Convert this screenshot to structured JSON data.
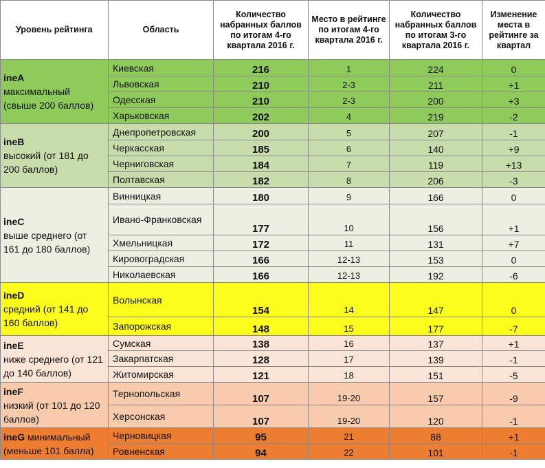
{
  "headers": {
    "level": "Уровень рейтинга",
    "region": "Область",
    "score_q4": "Количество набранных баллов по итогам 4-го квартала 2016 г.",
    "place_q4": "Место в рейтинге по итогам 4-го квартала 2016 г.",
    "score_q3": "Количество набранных баллов по итогам 3-го квартала 2016 г.",
    "change": "Изменение места в рейтинге за квартал"
  },
  "groups": [
    {
      "code": "ineA",
      "desc": "максимальный (свыше 200 баллов)",
      "color": "#8fcb5b",
      "rows": [
        {
          "region": "Киевская",
          "score": "216",
          "place": "1",
          "prev": "224",
          "change": "0"
        },
        {
          "region": "Львовская",
          "score": "210",
          "place": "2-3",
          "prev": "211",
          "change": "+1"
        },
        {
          "region": "Одесская",
          "score": "210",
          "place": "2-3",
          "prev": "200",
          "change": "+3"
        },
        {
          "region": "Харьковская",
          "score": "202",
          "place": "4",
          "prev": "219",
          "change": "-2"
        }
      ]
    },
    {
      "code": "ineB",
      "desc": "высокий (от 181 до 200 баллов)",
      "color": "#c9dcab",
      "rows": [
        {
          "region": "Днепропетровская",
          "score": "200",
          "place": "5",
          "prev": "207",
          "change": "-1"
        },
        {
          "region": "Черкасская",
          "score": "185",
          "place": "6",
          "prev": "140",
          "change": "+9"
        },
        {
          "region": "Черниговская",
          "score": "184",
          "place": "7",
          "prev": "119",
          "change": "+13"
        },
        {
          "region": "Полтавская",
          "score": "182",
          "place": "8",
          "prev": "206",
          "change": "-3"
        }
      ]
    },
    {
      "code": "ineC",
      "desc": "выше среднего (от 161 до 180 баллов)",
      "color": "#ebf1e2",
      "rows": [
        {
          "region": "Винницкая",
          "score": "180",
          "place": "9",
          "prev": "166",
          "change": "0"
        },
        {
          "region": "Ивано-Франковская",
          "score": "177",
          "place": "10",
          "prev": "156",
          "change": "+1"
        },
        {
          "region": "Хмельницкая",
          "score": "172",
          "place": "11",
          "prev": "131",
          "change": "+7"
        },
        {
          "region": "Кировоградская",
          "score": "166",
          "place": "12-13",
          "prev": "153",
          "change": "0"
        },
        {
          "region": "Николаевская",
          "score": "166",
          "place": "12-13",
          "prev": "192",
          "change": "-6"
        }
      ]
    },
    {
      "code": "ineD",
      "desc": "средний (от 141 до 160 баллов)",
      "color": "#fdfd1c",
      "rows": [
        {
          "region": "Волынская",
          "score": "154",
          "place": "14",
          "prev": "147",
          "change": "0"
        },
        {
          "region": "Запорожская",
          "score": "148",
          "place": "15",
          "prev": "177",
          "change": "-7"
        }
      ]
    },
    {
      "code": "ineE",
      "desc": "ниже среднего (от 121 до 140 баллов)",
      "color": "#fbe5d6",
      "rows": [
        {
          "region": "Сумская",
          "score": "138",
          "place": "16",
          "prev": "137",
          "change": "+1"
        },
        {
          "region": "Закарпатская",
          "score": "128",
          "place": "17",
          "prev": "139",
          "change": "-1"
        },
        {
          "region": "Житомирская",
          "score": "121",
          "place": "18",
          "prev": "151",
          "change": "-5"
        }
      ]
    },
    {
      "code": "ineF",
      "desc": "низкий (от 101 до 120 баллов)",
      "color": "#f8cbad",
      "rows": [
        {
          "region": "Тернопольская",
          "score": "107",
          "place": "19-20",
          "prev": "157",
          "change": "-9"
        },
        {
          "region": "Херсонская",
          "score": "107",
          "place": "19-20",
          "prev": "120",
          "change": "-1"
        }
      ]
    },
    {
      "code": "ineG",
      "desc": "минимальный (меньше 101 балла)",
      "color": "#ed7d31",
      "rows": [
        {
          "region": "Черновицкая",
          "score": "95",
          "place": "21",
          "prev": "88",
          "change": "+1"
        },
        {
          "region": "Ровненская",
          "score": "94",
          "place": "22",
          "prev": "101",
          "change": "-1"
        }
      ]
    }
  ]
}
